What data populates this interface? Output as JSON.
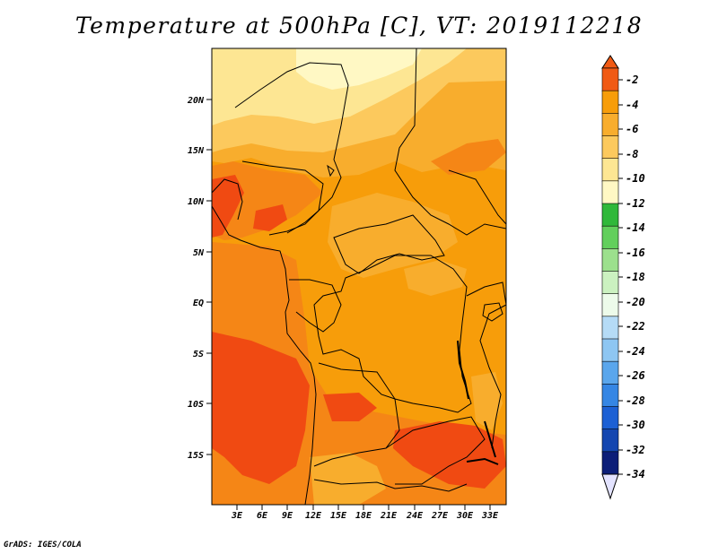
{
  "title": "Temperature at 500hPa [C], VT: 2019112218",
  "credit": "GrADS: IGES/COLA",
  "axes": {
    "lat_labels": [
      "20N",
      "15N",
      "10N",
      "5N",
      "EQ",
      "5S",
      "10S",
      "15S"
    ],
    "lon_labels": [
      "3E",
      "6E",
      "9E",
      "12E",
      "15E",
      "18E",
      "21E",
      "24E",
      "27E",
      "30E",
      "33E"
    ]
  },
  "colorbar": {
    "labels": [
      "-2",
      "-4",
      "-6",
      "-8",
      "-10",
      "-12",
      "-14",
      "-16",
      "-18",
      "-20",
      "-22",
      "-24",
      "-26",
      "-28",
      "-30",
      "-32",
      "-34"
    ],
    "colors": [
      "#f05a14",
      "#f79d0a",
      "#f8ad2d",
      "#fcc95d",
      "#fde693",
      "#fff8c4",
      "#30b83a",
      "#62cf5c",
      "#9ce08d",
      "#cbf1c0",
      "#edfbea",
      "#b5dbf6",
      "#8ec6f2",
      "#5aa6ec",
      "#3586e4",
      "#1c60d4",
      "#1446b0",
      "#0c1e78"
    ],
    "top_color": "#f05a14",
    "bottom_color": "#e3e3ff"
  },
  "palette": {
    "very_warm": "#f04a12",
    "warm": "#f58616",
    "orange": "#f79d0a",
    "light_orange": "#f8ad2d",
    "pale": "#fcc95d",
    "paler": "#fde693",
    "palest": "#fff8c4"
  }
}
